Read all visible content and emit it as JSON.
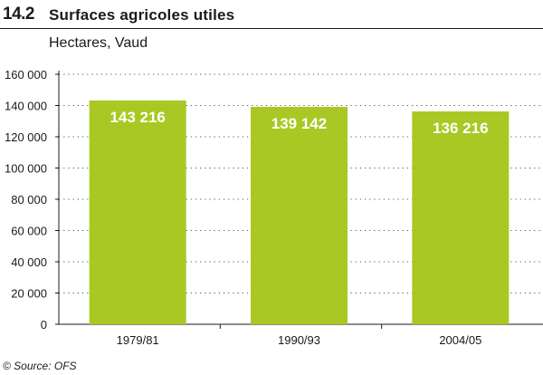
{
  "figure": {
    "number": "14.2",
    "title": "Surfaces agricoles utiles",
    "subtitle": "Hectares, Vaud",
    "source": "© Source: OFS"
  },
  "colors": {
    "bar": "#aac823",
    "bar_label": "#ffffff",
    "gridline": "#555555",
    "axis": "#1a1a1a"
  },
  "chart_data": {
    "type": "bar",
    "title": "Surfaces agricoles utiles",
    "subtitle": "Hectares, Vaud",
    "xlabel": "",
    "ylabel": "",
    "categories": [
      "1979/81",
      "1990/93",
      "2004/05"
    ],
    "values": [
      143216,
      139142,
      136216
    ],
    "value_labels": [
      "143 216",
      "139 142",
      "136 216"
    ],
    "ylim": [
      0,
      160000
    ],
    "yticks": [
      0,
      20000,
      40000,
      60000,
      80000,
      100000,
      120000,
      140000,
      160000
    ],
    "ytick_labels": [
      "0",
      "20 000",
      "40 000",
      "60 000",
      "80 000",
      "100 000",
      "120 000",
      "140 000",
      "160 000"
    ],
    "grid": true,
    "grid_style": "dotted"
  }
}
